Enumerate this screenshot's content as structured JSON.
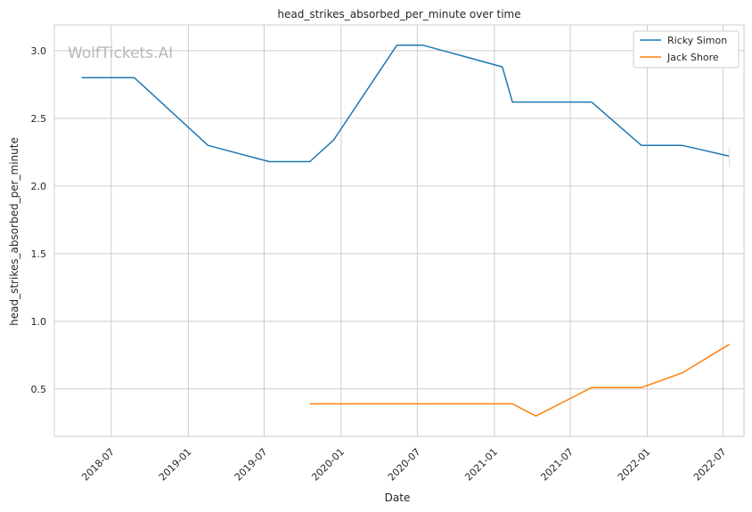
{
  "chart_data": {
    "type": "line",
    "title": "head_strikes_absorbed_per_minute over time",
    "xlabel": "Date",
    "ylabel": "head_strikes_absorbed_per_minute",
    "watermark": "WolfTickets.AI",
    "xlim": [
      "2018-02-15",
      "2022-08-20"
    ],
    "ylim": [
      0.15,
      3.19
    ],
    "x_ticks": [
      "2018-07",
      "2019-01",
      "2019-07",
      "2020-01",
      "2020-07",
      "2021-01",
      "2021-07",
      "2022-01",
      "2022-07"
    ],
    "y_ticks": [
      "0.5",
      "1.0",
      "1.5",
      "2.0",
      "2.5",
      "3.0"
    ],
    "grid": true,
    "legend_position": "top-right",
    "series": [
      {
        "name": "Ricky Simon",
        "color": "#1f77b4",
        "points": [
          {
            "x": "2018-04-21",
            "y": 2.8
          },
          {
            "x": "2018-08-25",
            "y": 2.8
          },
          {
            "x": "2019-02-17",
            "y": 2.3
          },
          {
            "x": "2019-07-13",
            "y": 2.18
          },
          {
            "x": "2019-10-18",
            "y": 2.18
          },
          {
            "x": "2019-12-14",
            "y": 2.34
          },
          {
            "x": "2020-05-13",
            "y": 3.04
          },
          {
            "x": "2020-07-15",
            "y": 3.04
          },
          {
            "x": "2021-01-20",
            "y": 2.88
          },
          {
            "x": "2021-02-13",
            "y": 2.62
          },
          {
            "x": "2021-08-21",
            "y": 2.62
          },
          {
            "x": "2021-12-18",
            "y": 2.3
          },
          {
            "x": "2022-03-26",
            "y": 2.3
          },
          {
            "x": "2022-07-16",
            "y": 2.22
          }
        ]
      },
      {
        "name": "Jack Shore",
        "color": "#ff7f0e",
        "points": [
          {
            "x": "2019-10-18",
            "y": 0.39
          },
          {
            "x": "2021-02-13",
            "y": 0.39
          },
          {
            "x": "2021-04-10",
            "y": 0.3
          },
          {
            "x": "2021-08-21",
            "y": 0.51
          },
          {
            "x": "2021-12-18",
            "y": 0.51
          },
          {
            "x": "2022-03-26",
            "y": 0.62
          },
          {
            "x": "2022-07-16",
            "y": 0.83
          }
        ]
      }
    ]
  }
}
